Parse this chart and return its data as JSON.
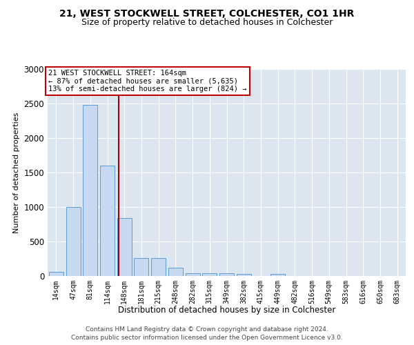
{
  "title1": "21, WEST STOCKWELL STREET, COLCHESTER, CO1 1HR",
  "title2": "Size of property relative to detached houses in Colchester",
  "xlabel": "Distribution of detached houses by size in Colchester",
  "ylabel": "Number of detached properties",
  "categories": [
    "14sqm",
    "47sqm",
    "81sqm",
    "114sqm",
    "148sqm",
    "181sqm",
    "215sqm",
    "248sqm",
    "282sqm",
    "315sqm",
    "349sqm",
    "382sqm",
    "415sqm",
    "449sqm",
    "482sqm",
    "516sqm",
    "549sqm",
    "583sqm",
    "616sqm",
    "650sqm",
    "683sqm"
  ],
  "values": [
    60,
    1000,
    2480,
    1600,
    840,
    265,
    265,
    120,
    45,
    40,
    40,
    30,
    0,
    30,
    0,
    0,
    0,
    0,
    0,
    0,
    0
  ],
  "bar_color": "#c6d9f0",
  "bar_edge_color": "#5b9bd5",
  "vline_x": 3.68,
  "vline_color": "#a00000",
  "annotation_text": "21 WEST STOCKWELL STREET: 164sqm\n← 87% of detached houses are smaller (5,635)\n13% of semi-detached houses are larger (824) →",
  "annotation_box_color": "#c00000",
  "ylim": [
    0,
    3000
  ],
  "yticks": [
    0,
    500,
    1000,
    1500,
    2000,
    2500,
    3000
  ],
  "background_color": "#dce6f1",
  "grid_color": "#ffffff",
  "footer_line1": "Contains HM Land Registry data © Crown copyright and database right 2024.",
  "footer_line2": "Contains public sector information licensed under the Open Government Licence v3.0."
}
